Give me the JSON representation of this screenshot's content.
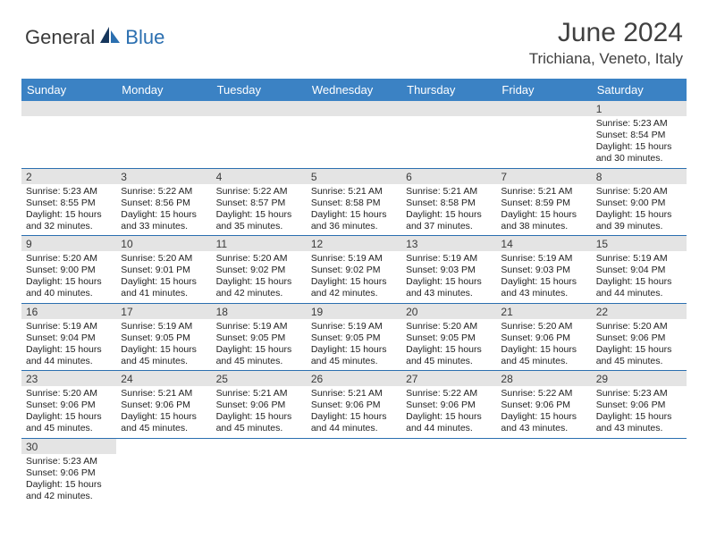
{
  "logo": {
    "part1": "General",
    "part2": "Blue"
  },
  "title": "June 2024",
  "location": "Trichiana, Veneto, Italy",
  "colors": {
    "header_bg": "#3b82c4",
    "rule": "#2b6fb0",
    "numbar": "#e4e4e4",
    "text": "#222222",
    "title_text": "#404040"
  },
  "day_labels": [
    "Sunday",
    "Monday",
    "Tuesday",
    "Wednesday",
    "Thursday",
    "Friday",
    "Saturday"
  ],
  "weeks": [
    [
      null,
      null,
      null,
      null,
      null,
      null,
      {
        "n": "1",
        "sr": "5:23 AM",
        "ss": "8:54 PM",
        "dl": "15 hours and 30 minutes."
      }
    ],
    [
      {
        "n": "2",
        "sr": "5:23 AM",
        "ss": "8:55 PM",
        "dl": "15 hours and 32 minutes."
      },
      {
        "n": "3",
        "sr": "5:22 AM",
        "ss": "8:56 PM",
        "dl": "15 hours and 33 minutes."
      },
      {
        "n": "4",
        "sr": "5:22 AM",
        "ss": "8:57 PM",
        "dl": "15 hours and 35 minutes."
      },
      {
        "n": "5",
        "sr": "5:21 AM",
        "ss": "8:58 PM",
        "dl": "15 hours and 36 minutes."
      },
      {
        "n": "6",
        "sr": "5:21 AM",
        "ss": "8:58 PM",
        "dl": "15 hours and 37 minutes."
      },
      {
        "n": "7",
        "sr": "5:21 AM",
        "ss": "8:59 PM",
        "dl": "15 hours and 38 minutes."
      },
      {
        "n": "8",
        "sr": "5:20 AM",
        "ss": "9:00 PM",
        "dl": "15 hours and 39 minutes."
      }
    ],
    [
      {
        "n": "9",
        "sr": "5:20 AM",
        "ss": "9:00 PM",
        "dl": "15 hours and 40 minutes."
      },
      {
        "n": "10",
        "sr": "5:20 AM",
        "ss": "9:01 PM",
        "dl": "15 hours and 41 minutes."
      },
      {
        "n": "11",
        "sr": "5:20 AM",
        "ss": "9:02 PM",
        "dl": "15 hours and 42 minutes."
      },
      {
        "n": "12",
        "sr": "5:19 AM",
        "ss": "9:02 PM",
        "dl": "15 hours and 42 minutes."
      },
      {
        "n": "13",
        "sr": "5:19 AM",
        "ss": "9:03 PM",
        "dl": "15 hours and 43 minutes."
      },
      {
        "n": "14",
        "sr": "5:19 AM",
        "ss": "9:03 PM",
        "dl": "15 hours and 43 minutes."
      },
      {
        "n": "15",
        "sr": "5:19 AM",
        "ss": "9:04 PM",
        "dl": "15 hours and 44 minutes."
      }
    ],
    [
      {
        "n": "16",
        "sr": "5:19 AM",
        "ss": "9:04 PM",
        "dl": "15 hours and 44 minutes."
      },
      {
        "n": "17",
        "sr": "5:19 AM",
        "ss": "9:05 PM",
        "dl": "15 hours and 45 minutes."
      },
      {
        "n": "18",
        "sr": "5:19 AM",
        "ss": "9:05 PM",
        "dl": "15 hours and 45 minutes."
      },
      {
        "n": "19",
        "sr": "5:19 AM",
        "ss": "9:05 PM",
        "dl": "15 hours and 45 minutes."
      },
      {
        "n": "20",
        "sr": "5:20 AM",
        "ss": "9:05 PM",
        "dl": "15 hours and 45 minutes."
      },
      {
        "n": "21",
        "sr": "5:20 AM",
        "ss": "9:06 PM",
        "dl": "15 hours and 45 minutes."
      },
      {
        "n": "22",
        "sr": "5:20 AM",
        "ss": "9:06 PM",
        "dl": "15 hours and 45 minutes."
      }
    ],
    [
      {
        "n": "23",
        "sr": "5:20 AM",
        "ss": "9:06 PM",
        "dl": "15 hours and 45 minutes."
      },
      {
        "n": "24",
        "sr": "5:21 AM",
        "ss": "9:06 PM",
        "dl": "15 hours and 45 minutes."
      },
      {
        "n": "25",
        "sr": "5:21 AM",
        "ss": "9:06 PM",
        "dl": "15 hours and 45 minutes."
      },
      {
        "n": "26",
        "sr": "5:21 AM",
        "ss": "9:06 PM",
        "dl": "15 hours and 44 minutes."
      },
      {
        "n": "27",
        "sr": "5:22 AM",
        "ss": "9:06 PM",
        "dl": "15 hours and 44 minutes."
      },
      {
        "n": "28",
        "sr": "5:22 AM",
        "ss": "9:06 PM",
        "dl": "15 hours and 43 minutes."
      },
      {
        "n": "29",
        "sr": "5:23 AM",
        "ss": "9:06 PM",
        "dl": "15 hours and 43 minutes."
      }
    ],
    [
      {
        "n": "30",
        "sr": "5:23 AM",
        "ss": "9:06 PM",
        "dl": "15 hours and 42 minutes."
      },
      null,
      null,
      null,
      null,
      null,
      null
    ]
  ],
  "labels": {
    "sunrise": "Sunrise:",
    "sunset": "Sunset:",
    "daylight": "Daylight:"
  }
}
